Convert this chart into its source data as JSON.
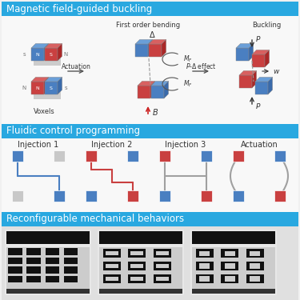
{
  "bg_color": "#f0f0f0",
  "header_color": "#29a8e0",
  "header_text_color": "#ffffff",
  "header1": "Magnetic field-guided buckling",
  "header2": "Fluidic control programming",
  "header3": "Reconfigurable mechanical behaviors",
  "blue_color": "#4a7fc1",
  "red_color": "#c94040",
  "gray_color": "#c8c8c8",
  "dark_gray": "#a0a0a0",
  "line_blue": "#4a7fc1",
  "line_red": "#c94040",
  "line_gray": "#a0a0a0",
  "arrow_color": "#555555",
  "white": "#ffffff",
  "injection_labels": [
    "Injection 1",
    "Injection 2",
    "Injection 3",
    "Actuation"
  ],
  "font_size_header": 8.5,
  "font_size_label": 7.0,
  "font_size_small": 6.0,
  "font_size_tiny": 5.5
}
